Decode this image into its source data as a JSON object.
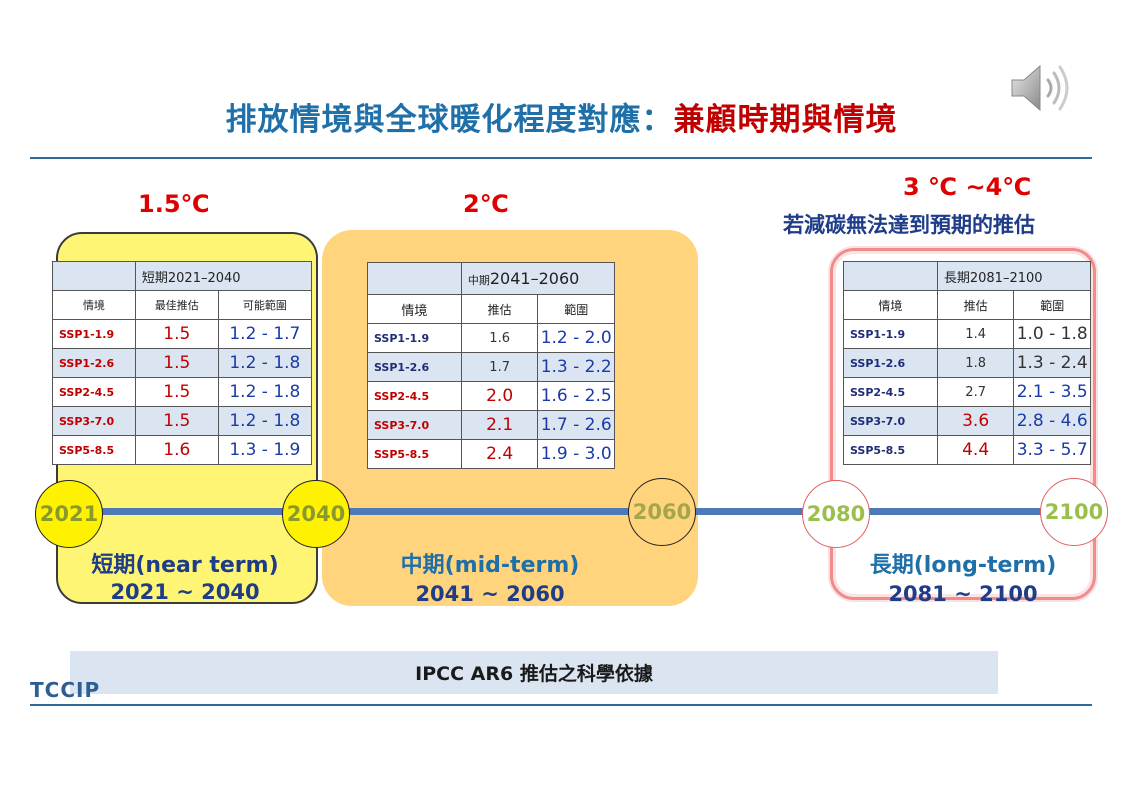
{
  "title": {
    "part1": "排放情境與全球暖化程度對應：",
    "part2": "兼顧時期與情境"
  },
  "temps": {
    "near": "1.5℃",
    "mid": "2℃",
    "long": "3 ℃ ~4℃",
    "long_note": "若減碳無法達到預期的推估"
  },
  "tables": {
    "near": {
      "period": "短期2021–2040",
      "col_scenario": "情境",
      "col_best": "最佳推估",
      "col_range": "可能範圍",
      "rows": [
        {
          "scenario": "SSP1-1.9",
          "best": "1.5",
          "range": "1.2 - 1.7"
        },
        {
          "scenario": "SSP1-2.6",
          "best": "1.5",
          "range": "1.2 - 1.8"
        },
        {
          "scenario": "SSP2-4.5",
          "best": "1.5",
          "range": "1.2 - 1.8"
        },
        {
          "scenario": "SSP3-7.0",
          "best": "1.5",
          "range": "1.2 - 1.8"
        },
        {
          "scenario": "SSP5-8.5",
          "best": "1.6",
          "range": "1.3 - 1.9"
        }
      ]
    },
    "mid": {
      "period_small": "中期",
      "period_big": "2041–2060",
      "col_scenario": "情境",
      "col_best": "推估",
      "col_range": "範圍",
      "rows": [
        {
          "scenario": "SSP1-1.9",
          "best": "1.6",
          "range": "1.2 - 2.0"
        },
        {
          "scenario": "SSP1-2.6",
          "best": "1.7",
          "range": "1.3 - 2.2"
        },
        {
          "scenario": "SSP2-4.5",
          "best": "2.0",
          "range": "1.6 - 2.5"
        },
        {
          "scenario": "SSP3-7.0",
          "best": "2.1",
          "range": "1.7 - 2.6"
        },
        {
          "scenario": "SSP5-8.5",
          "best": "2.4",
          "range": "1.9 - 3.0"
        }
      ]
    },
    "long": {
      "period": "長期2081–2100",
      "col_scenario": "情境",
      "col_best": "推估",
      "col_range": "範圍",
      "rows": [
        {
          "scenario": "SSP1-1.9",
          "best": "1.4",
          "range": "1.0 - 1.8"
        },
        {
          "scenario": "SSP1-2.6",
          "best": "1.8",
          "range": "1.3 - 2.4"
        },
        {
          "scenario": "SSP2-4.5",
          "best": "2.7",
          "range": "2.1 - 3.5"
        },
        {
          "scenario": "SSP3-7.0",
          "best": "3.6",
          "range": "2.8 - 4.6"
        },
        {
          "scenario": "SSP5-8.5",
          "best": "4.4",
          "range": "3.3 - 5.7"
        }
      ]
    }
  },
  "timeline": {
    "y2021": "2021",
    "y2040": "2040",
    "y2060": "2060",
    "y2080": "2080",
    "y2100": "2100"
  },
  "terms": {
    "near_name": "短期(near term)",
    "near_years": "2021 ~ 2040",
    "mid_name": "中期(mid-term)",
    "mid_years": "2041 ~ 2060",
    "long_name": "長期(long-term)",
    "long_years": "2081 ~ 2100"
  },
  "footer": {
    "source": "IPCC AR6 推估之科學依據",
    "logo": "TCCIP"
  },
  "colors": {
    "title_blue": "#1f6fa8",
    "title_red": "#c00000",
    "near_fill": "#fff574",
    "mid_fill": "#ffd47c",
    "long_border": "#f08c8c",
    "timeline": "#4f78b8"
  },
  "icons": [
    "speaker-icon"
  ]
}
